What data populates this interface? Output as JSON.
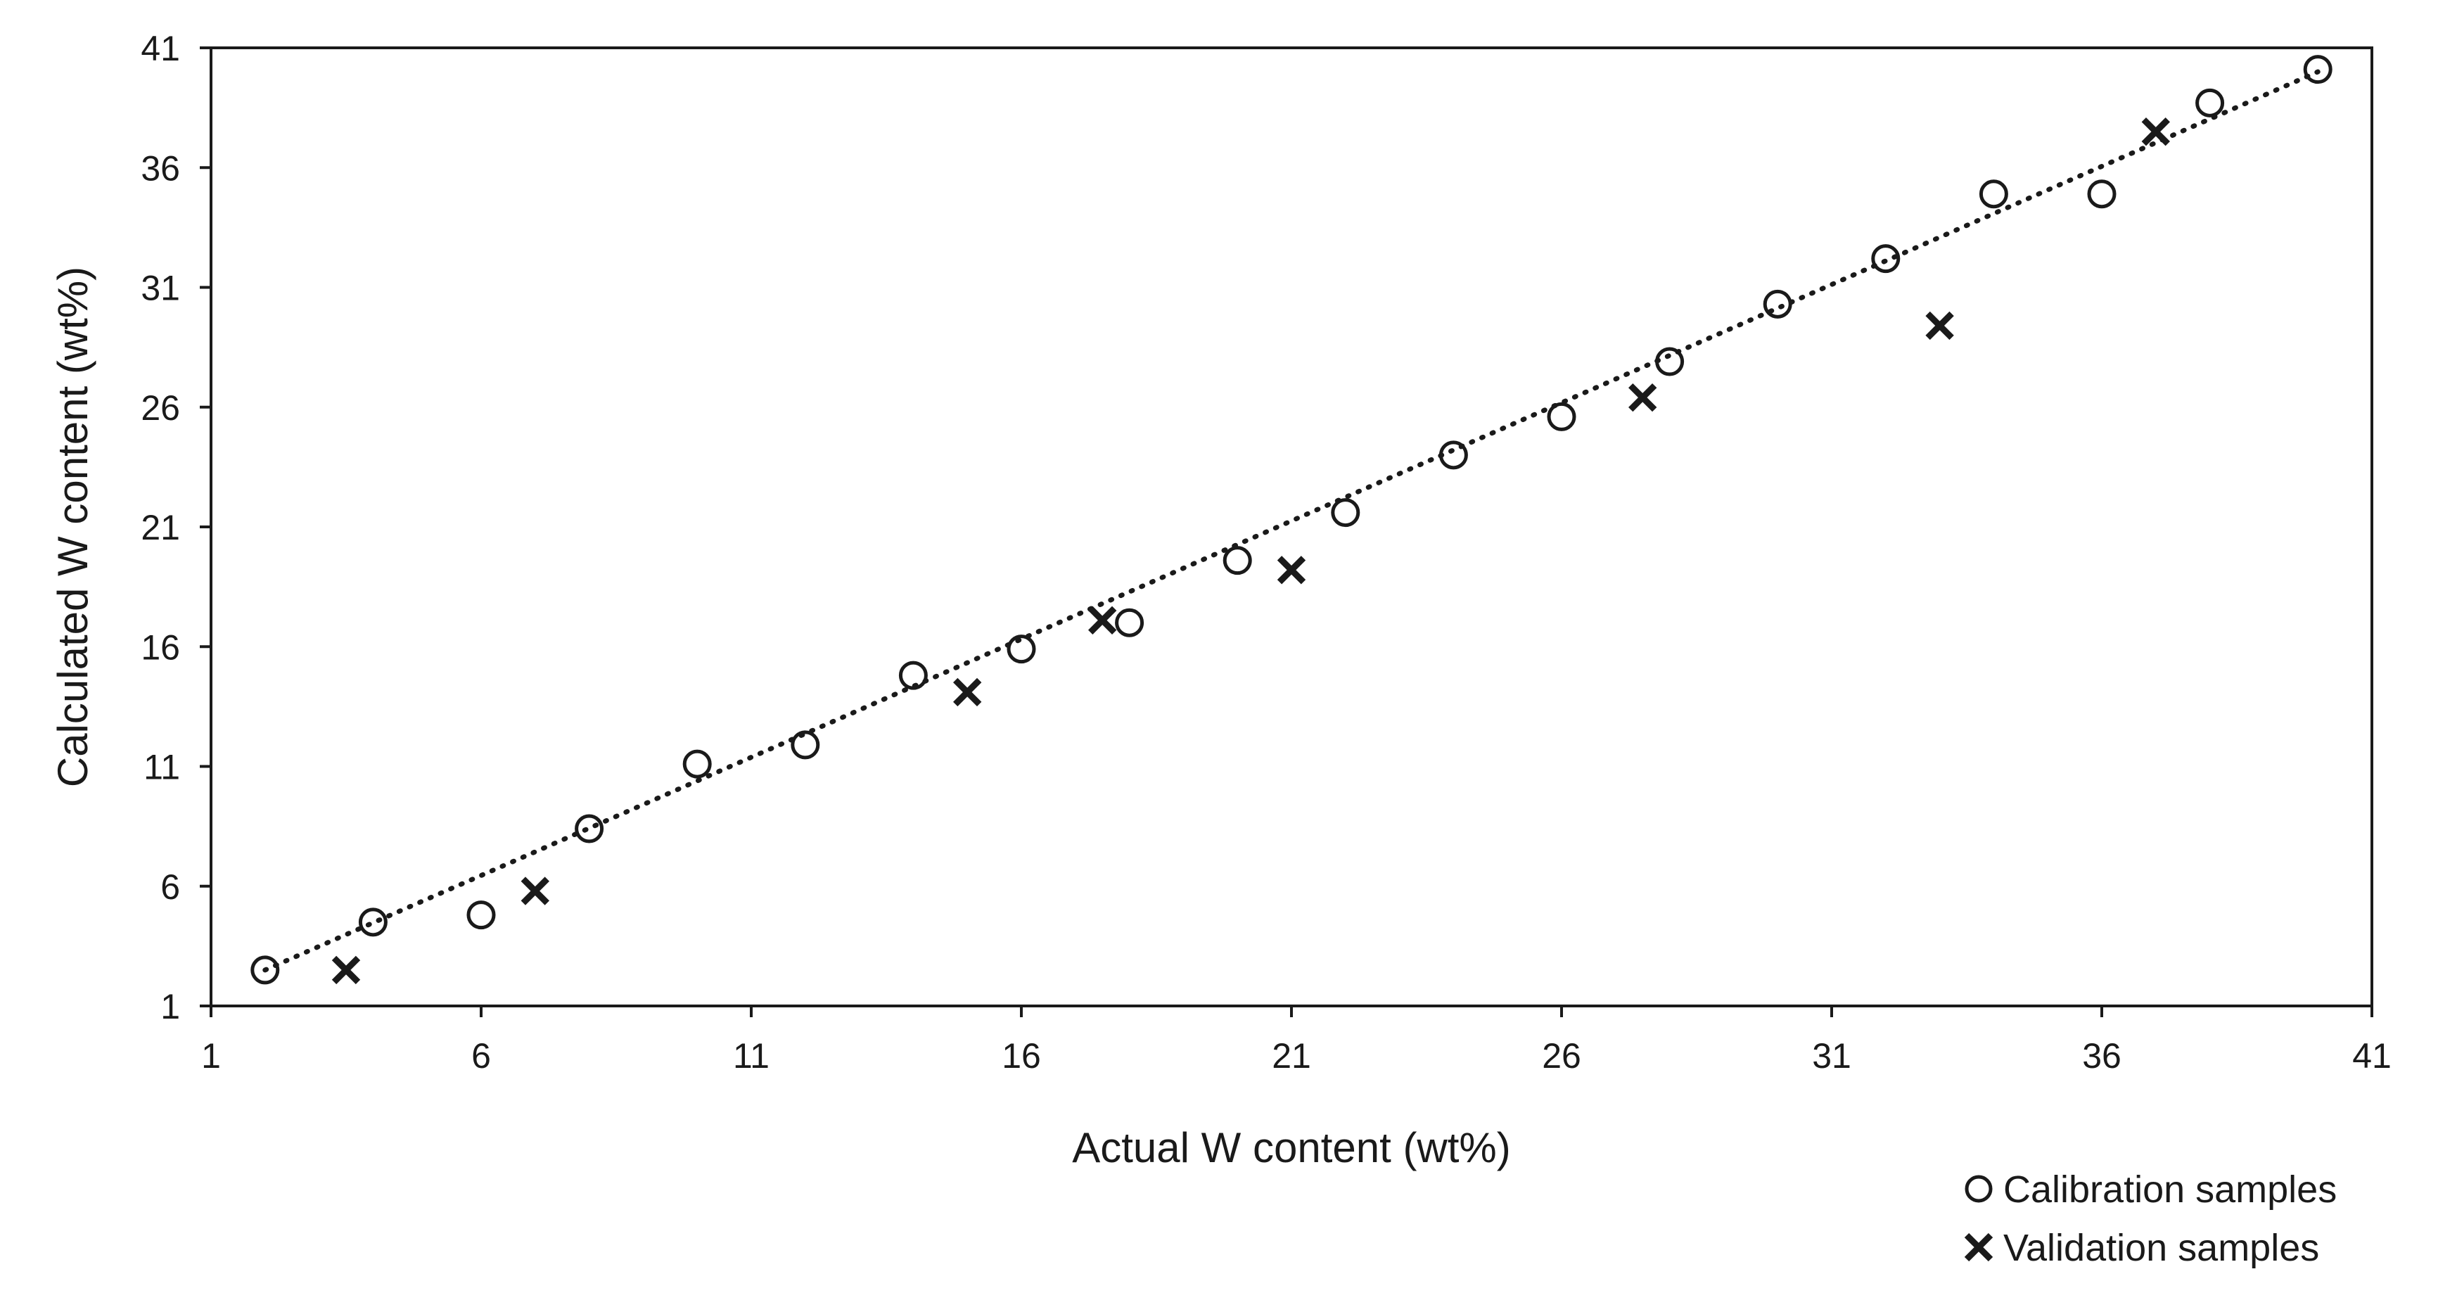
{
  "chart_data": {
    "type": "scatter",
    "xlabel": "Actual W content (wt%)",
    "ylabel": "Calculated W content (wt%)",
    "xlim": [
      1,
      41
    ],
    "ylim": [
      1,
      41
    ],
    "x_ticks": [
      1,
      6,
      11,
      16,
      21,
      26,
      31,
      36,
      41
    ],
    "y_ticks": [
      1,
      6,
      11,
      16,
      21,
      26,
      31,
      36,
      41
    ],
    "grid": false,
    "legend_position": "bottom-right",
    "trendline": {
      "style": "dotted",
      "from": [
        2,
        2.5
      ],
      "to": [
        40,
        40
      ]
    },
    "series": [
      {
        "name": "Calibration samples",
        "marker": "circle",
        "x": [
          2.0,
          4.0,
          6.0,
          8.0,
          10.0,
          12.0,
          14.0,
          16.0,
          18.0,
          20.0,
          22.0,
          24.0,
          26.0,
          28.0,
          30.0,
          32.0,
          34.0,
          36.0,
          38.0,
          40.0
        ],
        "y": [
          2.5,
          4.5,
          4.8,
          8.4,
          11.1,
          11.9,
          14.8,
          15.9,
          17.0,
          19.6,
          21.6,
          24.0,
          25.6,
          27.9,
          30.3,
          32.2,
          34.9,
          34.9,
          38.7,
          40.1
        ]
      },
      {
        "name": "Validation samples",
        "marker": "x",
        "x": [
          3.5,
          7.0,
          15.0,
          17.5,
          21.0,
          27.5,
          33.0,
          37.0
        ],
        "y": [
          2.5,
          5.8,
          14.1,
          17.1,
          19.2,
          26.4,
          29.4,
          37.5
        ]
      }
    ]
  }
}
